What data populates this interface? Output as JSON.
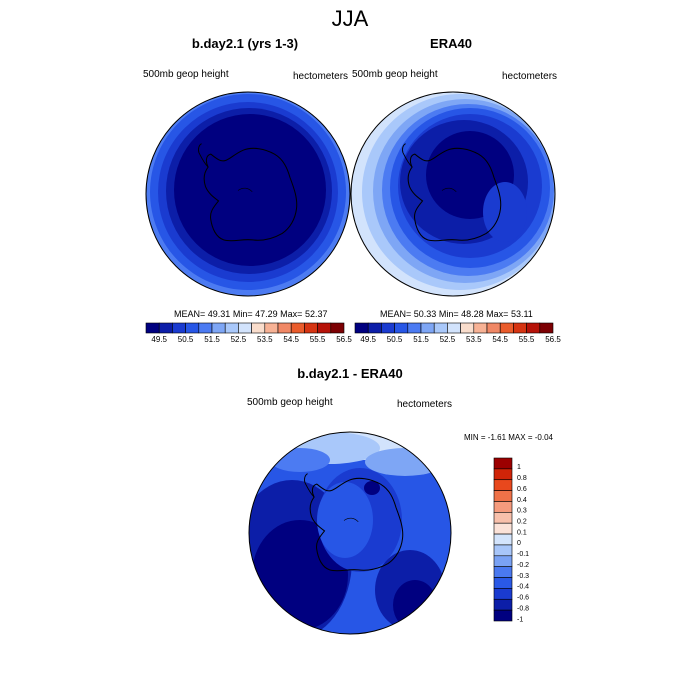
{
  "title": "JJA",
  "colors": {
    "shades": [
      "#000080",
      "#0c1ea8",
      "#1a3bd0",
      "#2756e6",
      "#4c7bf2",
      "#7ea6f5",
      "#a9c8fa",
      "#d2e3fc",
      "#f9ddcc",
      "#f7b295",
      "#f08866",
      "#ea5c2c",
      "#d63412",
      "#b61208",
      "#7c0003"
    ],
    "diff": [
      "#000080",
      "#0c1ea8",
      "#1a3bd0",
      "#2a59e6",
      "#4a79f0",
      "#7aa2f4",
      "#a8c6f9",
      "#d3e4fc",
      "#fbe2d8",
      "#f8c0ab",
      "#f59b7d",
      "#ef7248",
      "#e8481d",
      "#d02408",
      "#9c0000"
    ]
  },
  "panels": [
    {
      "title": "b.day2.1 (yrs 1-3)",
      "field_label": "500mb geop height",
      "units": "hectometers",
      "stats": {
        "mean": "49.31",
        "min": "47.29",
        "max": "52.37"
      },
      "stats_labels": {
        "mean": "MEAN=",
        "min": "Min=",
        "max": "Max="
      },
      "colorbar_ticks": [
        "49.5",
        "50.5",
        "51.5",
        "52.5",
        "53.5",
        "54.5",
        "55.5",
        "56.5"
      ]
    },
    {
      "title": "ERA40",
      "field_label": "500mb geop height",
      "units": "hectometers",
      "stats": {
        "mean": "50.33",
        "min": "48.28",
        "max": "53.11"
      },
      "stats_labels": {
        "mean": "MEAN=",
        "min": "Min=",
        "max": "Max="
      },
      "colorbar_ticks": [
        "49.5",
        "50.5",
        "51.5",
        "52.5",
        "53.5",
        "54.5",
        "55.5",
        "56.5"
      ]
    }
  ],
  "diff_panel": {
    "title": "b.day2.1 - ERA40",
    "field_label": "500mb geop height",
    "units": "hectometers",
    "min_label": "MIN =",
    "min": "-1.61",
    "max_label": "MAX =",
    "max": "-0.04",
    "colorbar_ticks": [
      "1",
      "0.8",
      "0.6",
      "0.4",
      "0.3",
      "0.2",
      "0.1",
      "0",
      "-0.1",
      "-0.2",
      "-0.3",
      "-0.4",
      "-0.6",
      "-0.8",
      "-1"
    ]
  }
}
